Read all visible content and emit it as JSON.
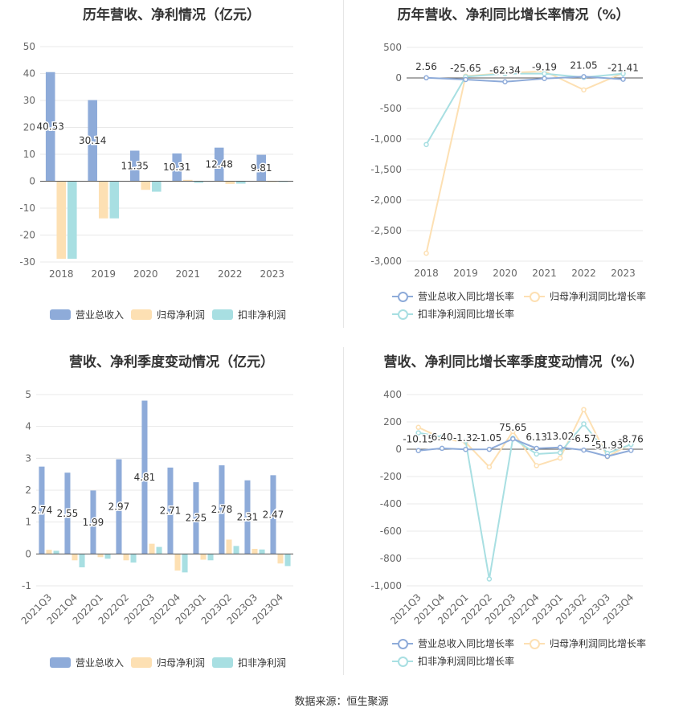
{
  "colors": {
    "revenue": "#8eabd9",
    "net_profit": "#fde0b3",
    "deducted_profit": "#a8dfe2",
    "grid": "#e8e8e8",
    "axis_text": "#666666"
  },
  "source": "数据来源：恒生聚源",
  "chart_data": [
    {
      "type": "bar",
      "title": "历年营收、净利情况（亿元）",
      "categories": [
        "2018",
        "2019",
        "2020",
        "2021",
        "2022",
        "2023"
      ],
      "ylim": [
        -30,
        50
      ],
      "yticks": [
        50,
        40,
        30,
        20,
        10,
        0,
        -10,
        -20,
        -30
      ],
      "series": [
        {
          "name": "营业总收入",
          "values": [
            40.53,
            30.14,
            11.35,
            10.31,
            12.48,
            9.81
          ],
          "labels": [
            "40.53",
            "30.14",
            "11.35",
            "10.31",
            "12.48",
            "9.81"
          ]
        },
        {
          "name": "归母净利润",
          "values": [
            -28.8,
            -13.8,
            -3.2,
            0.5,
            -1.0,
            -0.1
          ]
        },
        {
          "name": "扣非净利润",
          "values": [
            -28.8,
            -13.8,
            -3.9,
            -0.6,
            -0.9,
            -0.2
          ]
        }
      ],
      "legend": "bottom"
    },
    {
      "type": "line",
      "title": "历年营收、净利同比增长率情况（%）",
      "categories": [
        "2018",
        "2019",
        "2020",
        "2021",
        "2022",
        "2023"
      ],
      "ylim": [
        -3000,
        500
      ],
      "yticks": [
        "500",
        "0",
        "-500",
        "-1,000",
        "-1,500",
        "-2,000",
        "-2,500",
        "-3,000"
      ],
      "series": [
        {
          "name": "营业总收入同比增长率",
          "values": [
            2.56,
            -25.65,
            -62.34,
            -9.19,
            21.05,
            -21.41
          ],
          "labels": [
            "2.56",
            "-25.65",
            "-62.34",
            "-9.19",
            "21.05",
            "-21.41"
          ]
        },
        {
          "name": "归母净利润同比增长率",
          "values": [
            -2870,
            30,
            80,
            110,
            -195,
            80
          ]
        },
        {
          "name": "扣非净利润同比增长率",
          "values": [
            -1090,
            20,
            70,
            70,
            10,
            70
          ]
        }
      ],
      "legend": "bottom"
    },
    {
      "type": "bar",
      "title": "营收、净利季度变动情况（亿元）",
      "categories": [
        "2021Q3",
        "2021Q4",
        "2022Q1",
        "2022Q2",
        "2022Q3",
        "2022Q4",
        "2023Q1",
        "2023Q2",
        "2023Q3",
        "2023Q4"
      ],
      "ylim": [
        -1,
        5
      ],
      "yticks": [
        5,
        4,
        3,
        2,
        1,
        0,
        -1
      ],
      "series": [
        {
          "name": "营业总收入",
          "values": [
            2.74,
            2.55,
            1.99,
            2.97,
            4.81,
            2.71,
            2.25,
            2.78,
            2.31,
            2.47
          ],
          "labels": [
            "2.74",
            "2.55",
            "1.99",
            "2.97",
            "4.81",
            "2.71",
            "2.25",
            "2.78",
            "2.31",
            "2.47"
          ]
        },
        {
          "name": "归母净利润",
          "values": [
            0.13,
            -0.2,
            -0.1,
            -0.2,
            0.32,
            -0.52,
            -0.18,
            0.45,
            0.16,
            -0.3
          ]
        },
        {
          "name": "扣非净利润",
          "values": [
            0.1,
            -0.42,
            -0.15,
            -0.27,
            0.22,
            -0.58,
            -0.2,
            0.25,
            0.14,
            -0.38
          ]
        }
      ],
      "legend": "bottom"
    },
    {
      "type": "line",
      "title": "营收、净利同比增长率季度变动情况（%）",
      "categories": [
        "2021Q3",
        "2021Q4",
        "2022Q1",
        "2022Q2",
        "2022Q3",
        "2022Q4",
        "2023Q1",
        "2023Q2",
        "2023Q3",
        "2023Q4"
      ],
      "ylim": [
        -1000,
        400
      ],
      "yticks": [
        "400",
        "200",
        "0",
        "-200",
        "-400",
        "-600",
        "-800",
        "-1,000"
      ],
      "series": [
        {
          "name": "营业总收入同比增长率",
          "values": [
            -10.15,
            6.4,
            -1.32,
            -1.05,
            75.65,
            6.13,
            13.02,
            -6.57,
            -51.93,
            -8.76
          ],
          "labels": [
            "-10.15",
            "6.40",
            "-1.32",
            "-1.05",
            "75.65",
            "6.13",
            "13.02",
            "-6.57",
            "-51.93",
            "-8.76"
          ]
        },
        {
          "name": "归母净利润同比增长率",
          "values": [
            160,
            80,
            50,
            -130,
            130,
            -120,
            -65,
            290,
            -55,
            40
          ]
        },
        {
          "name": "扣非净利润同比增长率",
          "values": [
            120,
            90,
            60,
            -950,
            80,
            -35,
            -25,
            185,
            -30,
            35
          ]
        }
      ],
      "legend": "bottom"
    }
  ]
}
